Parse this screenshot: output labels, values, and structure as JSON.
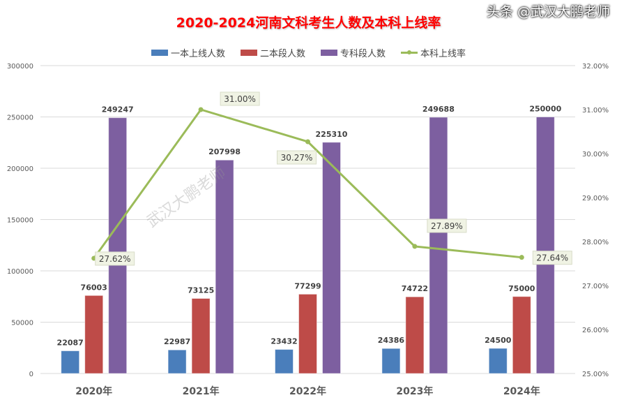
{
  "chart_data": {
    "type": "bar+line",
    "title": "2020-2024河南文科考生人数及本科上线率",
    "categories": [
      "2020年",
      "2021年",
      "2022年",
      "2023年",
      "2024年"
    ],
    "series": [
      {
        "name": "一本上线人数",
        "type": "bar",
        "axis": "left",
        "color": "#4a7ebb",
        "values": [
          22087,
          22987,
          23432,
          24386,
          24500
        ]
      },
      {
        "name": "二本段人数",
        "type": "bar",
        "axis": "left",
        "color": "#be4b48",
        "values": [
          76003,
          73125,
          77299,
          74722,
          75000
        ]
      },
      {
        "name": "专科段人数",
        "type": "bar",
        "axis": "left",
        "color": "#7d5fa0",
        "values": [
          249247,
          207998,
          225310,
          249688,
          250000
        ]
      },
      {
        "name": "本科上线率",
        "type": "line",
        "axis": "right",
        "color": "#9bbb59",
        "values": [
          27.62,
          31.0,
          30.27,
          27.89,
          27.64
        ],
        "labels": [
          "27.62%",
          "31.00%",
          "30.27%",
          "27.89%",
          "27.64%"
        ]
      }
    ],
    "left_axis": {
      "min": 0,
      "max": 300000,
      "ticks": [
        "0",
        "50000",
        "100000",
        "150000",
        "200000",
        "250000",
        "300000"
      ]
    },
    "right_axis": {
      "min": 25,
      "max": 32,
      "ticks": [
        "25.00%",
        "26.00%",
        "27.00%",
        "28.00%",
        "29.00%",
        "30.00%",
        "31.00%",
        "32.00%"
      ]
    },
    "grid": true,
    "legend_position": "top"
  },
  "watermark": "武汉大鹏老师",
  "footer_watermark": "头条 @武汉大鹏老师"
}
